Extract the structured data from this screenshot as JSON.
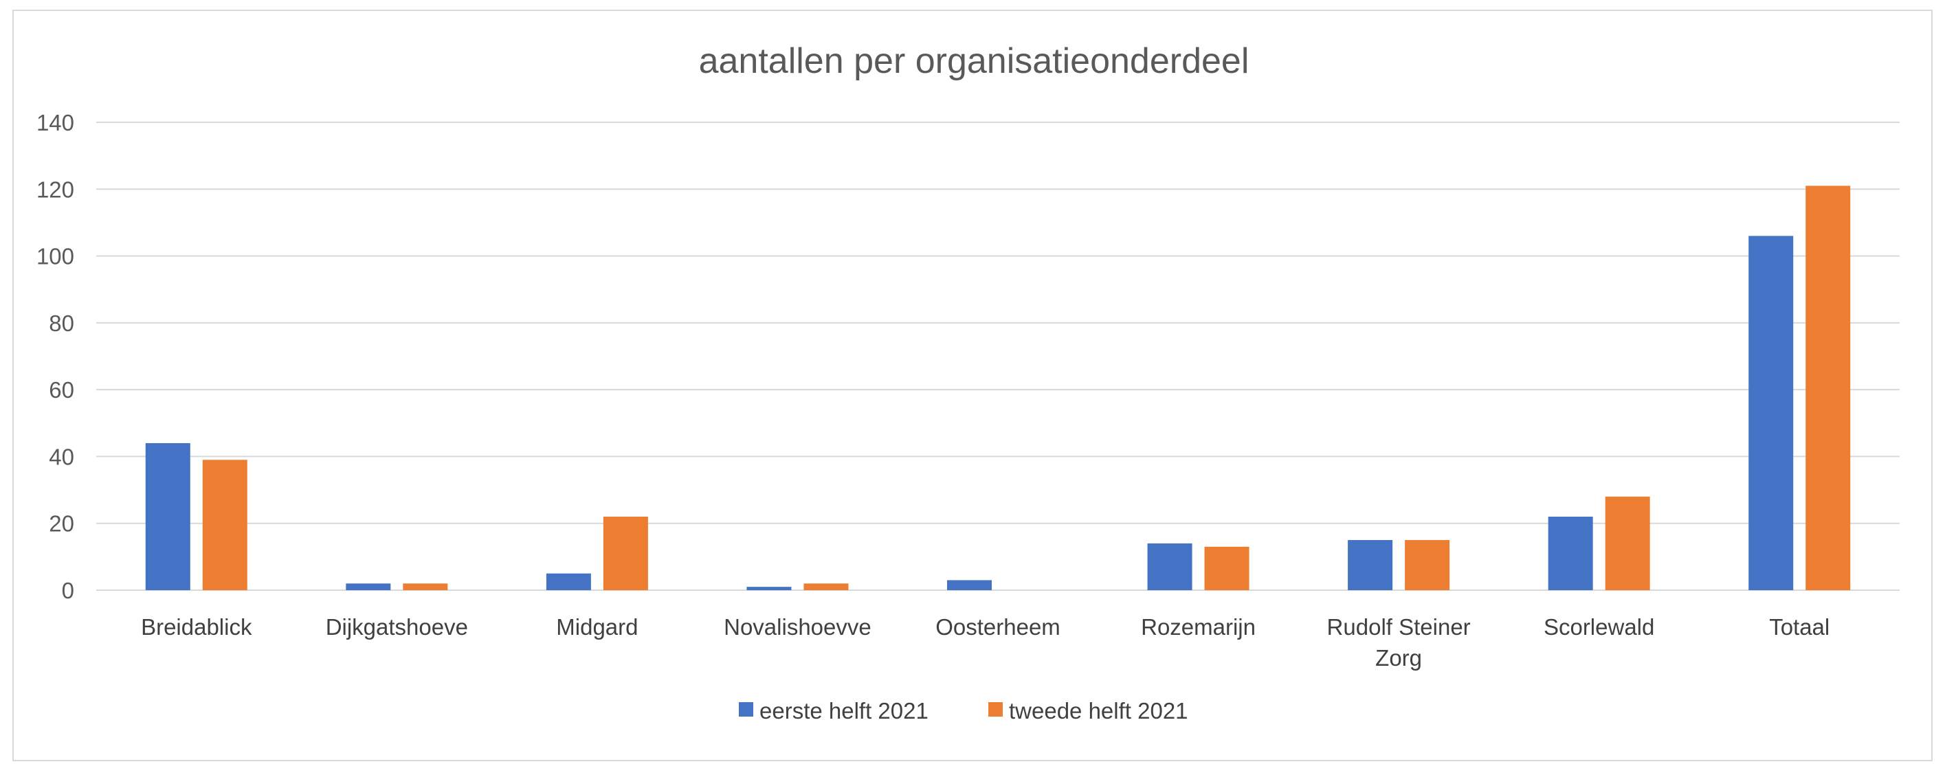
{
  "chart_data": {
    "type": "bar",
    "title": "aantallen per organisatieonderdeel",
    "categories": [
      "Breidablick",
      "Dijkgatshoeve",
      "Midgard",
      "Novalishoevve",
      "Oosterheem",
      "Rozemarijn",
      "Rudolf Steiner Zorg",
      "Scorlewald",
      "Totaal"
    ],
    "category_lines": [
      [
        "Breidablick"
      ],
      [
        "Dijkgatshoeve"
      ],
      [
        "Midgard"
      ],
      [
        "Novalishoevve"
      ],
      [
        "Oosterheem"
      ],
      [
        "Rozemarijn"
      ],
      [
        "Rudolf Steiner",
        "Zorg"
      ],
      [
        "Scorlewald"
      ],
      [
        "Totaal"
      ]
    ],
    "series": [
      {
        "name": "eerste helft 2021",
        "color": "#4472c4",
        "values": [
          44,
          2,
          5,
          1,
          3,
          14,
          15,
          22,
          106
        ]
      },
      {
        "name": "tweede helft 2021",
        "color": "#ed7d31",
        "values": [
          39,
          2,
          22,
          2,
          0,
          13,
          15,
          28,
          121
        ]
      }
    ],
    "yticks": [
      "0",
      "20",
      "40",
      "60",
      "80",
      "100",
      "120",
      "140"
    ],
    "ylim": [
      0,
      140
    ],
    "grid": true,
    "legend_position": "bottom",
    "gridline_color": "#d9d9d9"
  }
}
